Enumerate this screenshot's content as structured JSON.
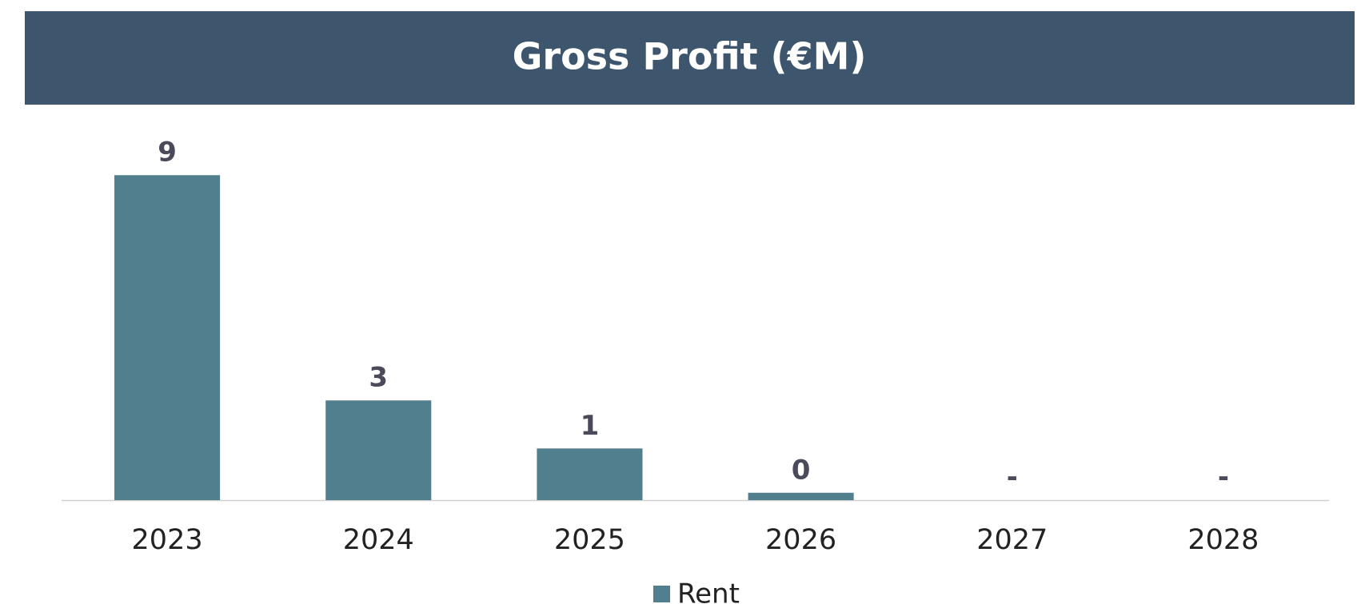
{
  "chart_data": {
    "type": "bar",
    "title": "Gross Profit (€M)",
    "categories": [
      "2023",
      "2024",
      "2025",
      "2026",
      "2027",
      "2028"
    ],
    "series": [
      {
        "name": "Rent",
        "color": "#527f8e",
        "values": [
          8.8,
          2.7,
          1.4,
          0.2,
          0,
          0
        ],
        "value_labels": [
          "9",
          "3",
          "1",
          "0",
          "-",
          "-"
        ]
      }
    ],
    "ylim": [
      0,
      9
    ],
    "legend": "bottom"
  }
}
